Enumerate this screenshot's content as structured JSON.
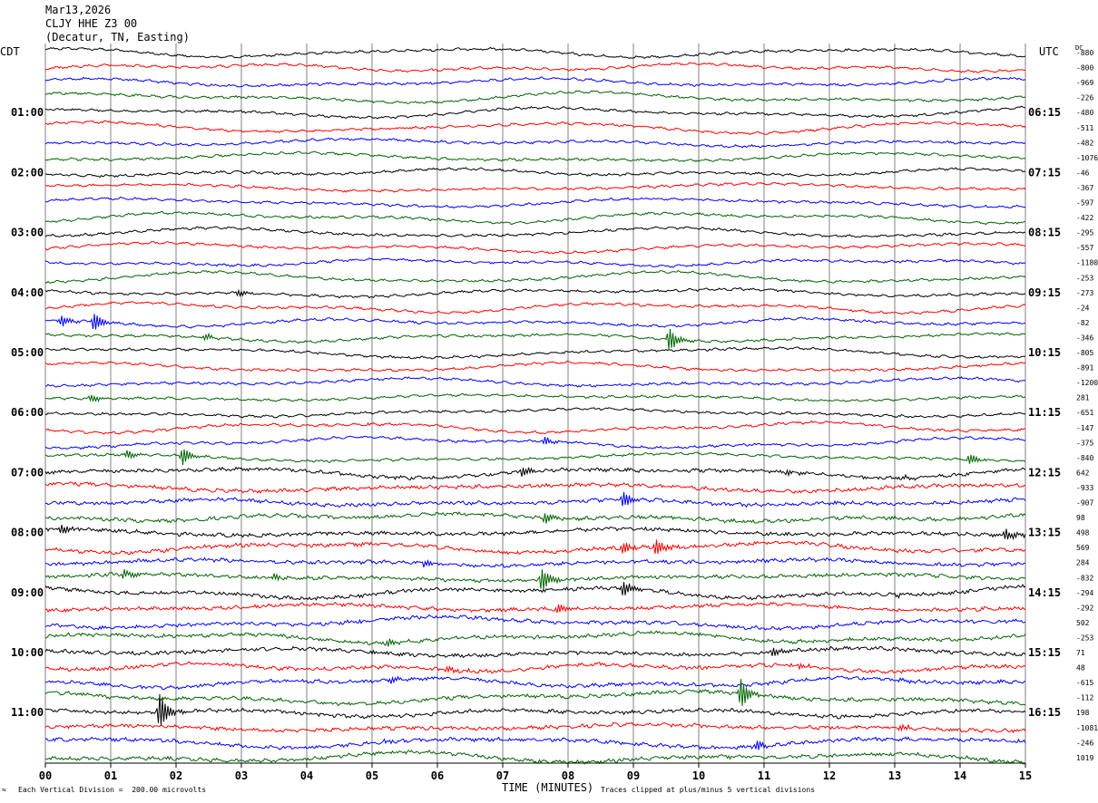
{
  "header": {
    "date": "Mar13,2026",
    "station": "CLJY HHE Z3 00",
    "location": "(Decatur, TN, Easting)"
  },
  "left_label": "CDT",
  "right_label": "UTC",
  "dc_label": "DC",
  "footer": {
    "scale": "Each Vertical Division =  200.00 microvolts",
    "clip": "Traces clipped at plus/minus 5 vertical divisions",
    "corner_mark": "≈"
  },
  "colors": {
    "trace_cycle": [
      "#000000",
      "#ff0000",
      "#0000ff",
      "#006400"
    ],
    "grid": "#808080"
  },
  "chart_data": {
    "type": "line",
    "title": "CLJY HHE Z3 00",
    "xlabel": "TIME (MINUTES)",
    "x_ticks": [
      "00",
      "01",
      "02",
      "03",
      "04",
      "05",
      "06",
      "07",
      "08",
      "09",
      "10",
      "11",
      "12",
      "13",
      "14",
      "15"
    ],
    "xlim": [
      0,
      15
    ],
    "trace_count": 48,
    "cdt_labels": [
      {
        "label": "01:00",
        "trace": 4
      },
      {
        "label": "02:00",
        "trace": 8
      },
      {
        "label": "03:00",
        "trace": 12
      },
      {
        "label": "04:00",
        "trace": 16
      },
      {
        "label": "05:00",
        "trace": 20
      },
      {
        "label": "06:00",
        "trace": 24
      },
      {
        "label": "07:00",
        "trace": 28
      },
      {
        "label": "08:00",
        "trace": 32
      },
      {
        "label": "09:00",
        "trace": 36
      },
      {
        "label": "10:00",
        "trace": 40
      },
      {
        "label": "11:00",
        "trace": 44
      }
    ],
    "utc_labels": [
      {
        "label": "06:15",
        "trace": 4
      },
      {
        "label": "07:15",
        "trace": 8
      },
      {
        "label": "08:15",
        "trace": 12
      },
      {
        "label": "09:15",
        "trace": 16
      },
      {
        "label": "10:15",
        "trace": 20
      },
      {
        "label": "11:15",
        "trace": 24
      },
      {
        "label": "12:15",
        "trace": 28
      },
      {
        "label": "13:15",
        "trace": 32
      },
      {
        "label": "14:15",
        "trace": 36
      },
      {
        "label": "15:15",
        "trace": 40
      },
      {
        "label": "16:15",
        "trace": 44
      }
    ],
    "dc_offsets": [
      "-880",
      "-800",
      "-969",
      "-226",
      "-480",
      "-511",
      "-482",
      "-1076",
      "-46",
      "-367",
      "-597",
      "-422",
      "-295",
      "-557",
      "-1180",
      "-253",
      "-273",
      "-24",
      "-82",
      "-346",
      "-805",
      "-891",
      "-1200",
      "281",
      "-651",
      "-147",
      "-375",
      "-840",
      "642",
      "-933",
      "-907",
      "98",
      "498",
      "569",
      "284",
      "-832",
      "-294",
      "-292",
      "502",
      "-253",
      "71",
      "48",
      "-615",
      "-112",
      "198",
      "-1081",
      "-246",
      "1019"
    ],
    "events": [
      {
        "trace": 19,
        "t": 9.55,
        "amp": 14
      },
      {
        "trace": 16,
        "t": 2.95,
        "amp": 6
      },
      {
        "trace": 18,
        "t": 0.25,
        "amp": 6
      },
      {
        "trace": 18,
        "t": 0.75,
        "amp": 10
      },
      {
        "trace": 19,
        "t": 2.45,
        "amp": 5
      },
      {
        "trace": 23,
        "t": 0.7,
        "amp": 4
      },
      {
        "trace": 25,
        "t": 4.95,
        "amp": 4
      },
      {
        "trace": 26,
        "t": 7.65,
        "amp": 4
      },
      {
        "trace": 27,
        "t": 1.25,
        "amp": 5
      },
      {
        "trace": 27,
        "t": 2.1,
        "amp": 11
      },
      {
        "trace": 28,
        "t": 7.3,
        "amp": 6
      },
      {
        "trace": 28,
        "t": 11.35,
        "amp": 9
      },
      {
        "trace": 28,
        "t": 13.15,
        "amp": 7
      },
      {
        "trace": 27,
        "t": 14.15,
        "amp": 8
      },
      {
        "trace": 30,
        "t": 8.85,
        "amp": 9
      },
      {
        "trace": 31,
        "t": 7.65,
        "amp": 6
      },
      {
        "trace": 31,
        "t": 12.95,
        "amp": 6
      },
      {
        "trace": 32,
        "t": 0.25,
        "amp": 5
      },
      {
        "trace": 32,
        "t": 14.7,
        "amp": 8
      },
      {
        "trace": 33,
        "t": 4.85,
        "amp": 9
      },
      {
        "trace": 33,
        "t": 8.85,
        "amp": 6
      },
      {
        "trace": 33,
        "t": 9.35,
        "amp": 9
      },
      {
        "trace": 34,
        "t": 4.8,
        "amp": 10
      },
      {
        "trace": 34,
        "t": 5.8,
        "amp": 7
      },
      {
        "trace": 35,
        "t": 1.2,
        "amp": 6
      },
      {
        "trace": 35,
        "t": 3.5,
        "amp": 8
      },
      {
        "trace": 35,
        "t": 7.6,
        "amp": 13
      },
      {
        "trace": 36,
        "t": 8.85,
        "amp": 8
      },
      {
        "trace": 36,
        "t": 13.0,
        "amp": 7
      },
      {
        "trace": 37,
        "t": 7.85,
        "amp": 5
      },
      {
        "trace": 38,
        "t": 4.8,
        "amp": 9
      },
      {
        "trace": 39,
        "t": 4.1,
        "amp": 5
      },
      {
        "trace": 39,
        "t": 5.25,
        "amp": 14
      },
      {
        "trace": 40,
        "t": 11.15,
        "amp": 9
      },
      {
        "trace": 40,
        "t": 4.95,
        "amp": 6
      },
      {
        "trace": 41,
        "t": 6.15,
        "amp": 6
      },
      {
        "trace": 41,
        "t": 11.55,
        "amp": 8
      },
      {
        "trace": 42,
        "t": 5.3,
        "amp": 9
      },
      {
        "trace": 42,
        "t": 12.2,
        "amp": 8
      },
      {
        "trace": 42,
        "t": 13.1,
        "amp": 7
      },
      {
        "trace": 43,
        "t": 10.65,
        "amp": 28
      },
      {
        "trace": 44,
        "t": 1.75,
        "amp": 22
      },
      {
        "trace": 45,
        "t": 13.1,
        "amp": 10
      },
      {
        "trace": 46,
        "t": 10.9,
        "amp": 8
      },
      {
        "trace": 46,
        "t": 5.2,
        "amp": 6
      }
    ]
  }
}
